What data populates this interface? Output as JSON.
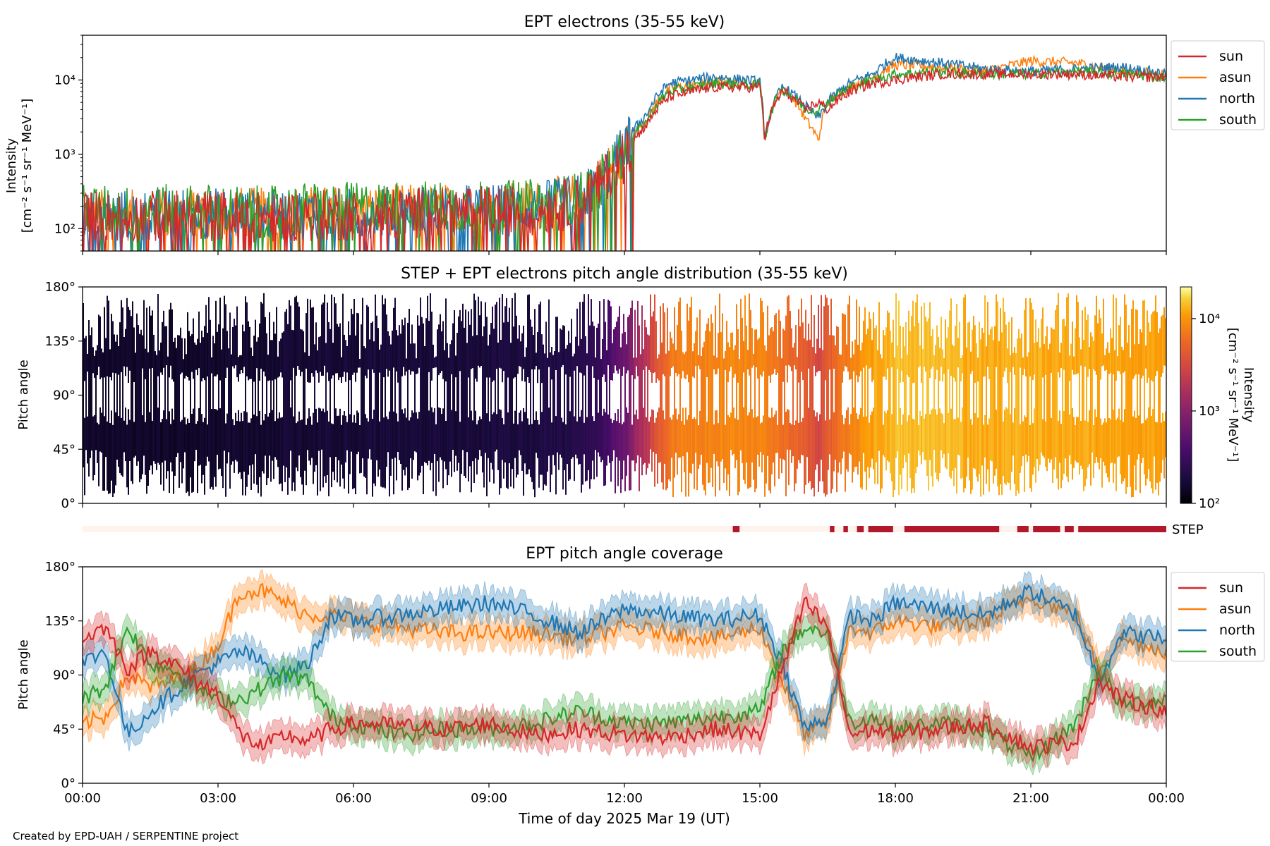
{
  "figure": {
    "credit": "Created by EPD-UAH / SERPENTINE project",
    "xlabel": "Time of day 2025 Mar 19 (UT)",
    "xticks": [
      "00:00",
      "03:00",
      "06:00",
      "09:00",
      "12:00",
      "15:00",
      "18:00",
      "21:00",
      "00:00"
    ]
  },
  "chart_data": [
    {
      "type": "line",
      "title": "EPT electrons (35-55 keV)",
      "ylabel_line1": "Intensity",
      "ylabel_line2": "[cm⁻² s⁻¹ sr⁻¹ MeV⁻¹]",
      "yscale": "log",
      "ylim": [
        50,
        40000
      ],
      "yticks": [
        "10²",
        "10³",
        "10⁴"
      ],
      "xlim_hours": [
        0,
        24
      ],
      "legend": {
        "placement": "outside-right",
        "entries": [
          "sun",
          "asun",
          "north",
          "south"
        ]
      },
      "colors": {
        "sun": "#d62728",
        "asun": "#ff7f0e",
        "north": "#1f77b4",
        "south": "#2ca02c"
      },
      "x_hours": [
        0,
        1,
        2,
        3,
        4,
        5,
        6,
        7,
        8,
        9,
        10,
        11,
        11.5,
        12,
        12.5,
        13,
        14,
        15,
        15.1,
        15.5,
        16,
        16.3,
        16.5,
        17,
        17.5,
        18,
        19,
        20,
        21,
        22,
        23,
        24
      ],
      "series": [
        {
          "name": "sun",
          "values": [
            150,
            140,
            150,
            150,
            140,
            150,
            150,
            160,
            170,
            170,
            180,
            220,
            400,
            900,
            2500,
            6000,
            8000,
            8000,
            1500,
            7000,
            4000,
            5000,
            4000,
            7000,
            9000,
            10000,
            12000,
            12000,
            12000,
            12000,
            11000,
            11000
          ]
        },
        {
          "name": "asun",
          "values": [
            160,
            150,
            160,
            170,
            160,
            170,
            170,
            180,
            180,
            190,
            200,
            250,
            450,
            1000,
            3000,
            7500,
            9500,
            9000,
            1200,
            8000,
            3000,
            1500,
            5000,
            8000,
            11000,
            16000,
            15000,
            13000,
            18000,
            17000,
            13000,
            12000
          ]
        },
        {
          "name": "north",
          "values": [
            160,
            150,
            160,
            160,
            150,
            160,
            160,
            170,
            180,
            180,
            190,
            240,
            420,
            1100,
            3500,
            9000,
            11000,
            9500,
            1300,
            8000,
            4500,
            3000,
            5000,
            9000,
            12000,
            20000,
            17000,
            14000,
            13000,
            14000,
            15000,
            12000
          ]
        },
        {
          "name": "south",
          "values": [
            180,
            170,
            180,
            180,
            170,
            190,
            190,
            200,
            200,
            200,
            210,
            260,
            450,
            1000,
            2800,
            7000,
            9000,
            8500,
            1400,
            7500,
            4000,
            4000,
            5000,
            8000,
            10000,
            12000,
            13000,
            12000,
            12000,
            13000,
            12000,
            11000
          ]
        }
      ]
    },
    {
      "type": "heatmap",
      "title": "STEP + EPT electrons pitch angle distribution (35-55 keV)",
      "ylabel": "Pitch angle",
      "ylim": [
        0,
        180
      ],
      "yticks": [
        "0°",
        "45°",
        "90°",
        "135°",
        "180°"
      ],
      "colorbar": {
        "label": "Intensity [cm⁻² s⁻¹ sr⁻¹ MeV⁻¹]",
        "label_line1": "Intensity",
        "label_line2": "[cm⁻² s⁻¹ sr⁻¹ MeV⁻¹]",
        "scale": "log",
        "range": [
          100,
          22000
        ],
        "ticks": [
          "10²",
          "10³",
          "10⁴"
        ],
        "colormap": "inferno"
      },
      "x_hours": [
        0,
        2,
        4,
        6,
        8,
        10,
        11,
        11.5,
        12,
        12.5,
        13,
        14,
        15,
        16,
        16.3,
        17,
        18,
        19,
        20,
        21,
        22,
        23,
        24
      ],
      "intensity": [
        150,
        150,
        160,
        170,
        180,
        190,
        220,
        300,
        600,
        2000,
        7000,
        8500,
        8000,
        4500,
        3000,
        8000,
        15000,
        14000,
        12000,
        13000,
        12000,
        12000,
        11000
      ]
    },
    {
      "type": "bar",
      "label": "STEP",
      "description": "STEP coverage indicator",
      "active_intervals_hours": [
        [
          14.4,
          14.55
        ],
        [
          16.55,
          16.65
        ],
        [
          16.85,
          16.95
        ],
        [
          17.15,
          17.3
        ],
        [
          17.4,
          17.95
        ],
        [
          18.2,
          20.3
        ],
        [
          20.7,
          20.95
        ],
        [
          21.05,
          21.65
        ],
        [
          21.75,
          21.95
        ],
        [
          22.05,
          24.0
        ]
      ]
    },
    {
      "type": "line",
      "title": "EPT pitch angle coverage",
      "ylabel": "Pitch angle",
      "ylim": [
        0,
        180
      ],
      "yticks": [
        "0°",
        "45°",
        "90°",
        "135°",
        "180°"
      ],
      "xlim_hours": [
        0,
        24
      ],
      "legend": {
        "placement": "outside-right",
        "entries": [
          "sun",
          "asun",
          "north",
          "south"
        ]
      },
      "colors": {
        "sun": "#d62728",
        "asun": "#ff7f0e",
        "north": "#1f77b4",
        "south": "#2ca02c"
      },
      "band_halfwidth_deg": 12,
      "x_hours": [
        0,
        0.5,
        1,
        1.5,
        2,
        2.5,
        3,
        3.5,
        4,
        4.5,
        5,
        5.5,
        6,
        7,
        8,
        9,
        10,
        11,
        12,
        13,
        14,
        15,
        15.5,
        16,
        16.5,
        17,
        17.5,
        18,
        19,
        20,
        21,
        22,
        22.5,
        23,
        24
      ],
      "series": [
        {
          "name": "sun",
          "values": [
            120,
            130,
            95,
            110,
            100,
            85,
            75,
            40,
            30,
            40,
            35,
            45,
            50,
            48,
            45,
            50,
            40,
            45,
            40,
            38,
            45,
            40,
            95,
            150,
            130,
            40,
            45,
            40,
            45,
            50,
            30,
            35,
            85,
            70,
            60
          ]
        },
        {
          "name": "asun",
          "values": [
            50,
            55,
            90,
            80,
            85,
            95,
            115,
            160,
            160,
            150,
            140,
            140,
            135,
            130,
            125,
            125,
            125,
            120,
            130,
            125,
            120,
            130,
            85,
            40,
            50,
            130,
            125,
            135,
            130,
            135,
            155,
            140,
            95,
            120,
            110
          ]
        },
        {
          "name": "north",
          "values": [
            100,
            110,
            40,
            60,
            75,
            90,
            100,
            110,
            100,
            90,
            100,
            140,
            135,
            140,
            145,
            150,
            140,
            125,
            145,
            140,
            135,
            140,
            100,
            45,
            55,
            140,
            135,
            150,
            145,
            140,
            160,
            140,
            85,
            125,
            120
          ]
        },
        {
          "name": "south",
          "values": [
            70,
            80,
            130,
            100,
            95,
            80,
            70,
            70,
            80,
            90,
            85,
            55,
            50,
            40,
            45,
            45,
            50,
            60,
            50,
            50,
            55,
            60,
            110,
            130,
            125,
            50,
            55,
            45,
            50,
            45,
            20,
            50,
            95,
            65,
            70
          ]
        }
      ]
    }
  ]
}
